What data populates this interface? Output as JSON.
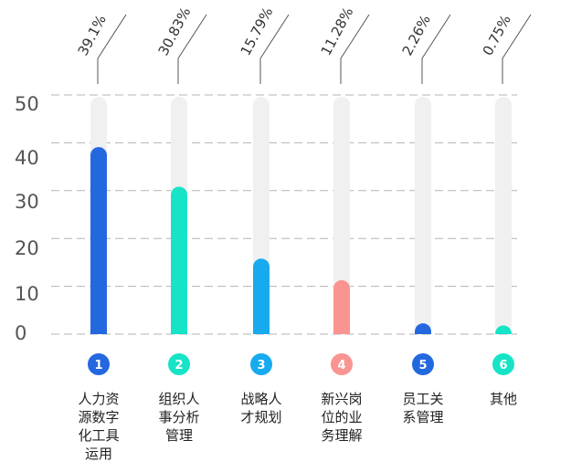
{
  "chart_data": {
    "type": "bar",
    "categories": [
      "人力资源数字化工具运用",
      "组织人事分析管理",
      "战略人才规划",
      "新兴岗位的业务理解",
      "员工关系管理",
      "其他"
    ],
    "category_lines": [
      [
        "人力资",
        "源数字",
        "化工具",
        "运用"
      ],
      [
        "组织人",
        "事分析",
        "管理"
      ],
      [
        "战略人",
        "才规划"
      ],
      [
        "新兴岗",
        "位的业",
        "务理解"
      ],
      [
        "员工关",
        "系管理"
      ],
      [
        "其他"
      ]
    ],
    "badges": [
      "1",
      "2",
      "3",
      "4",
      "5",
      "6"
    ],
    "values": [
      39.1,
      30.83,
      15.79,
      11.28,
      2.26,
      0.75
    ],
    "value_labels": [
      "39.1%",
      "30.83%",
      "15.79%",
      "11.28%",
      "2.26%",
      "0.75%"
    ],
    "y_ticks": [
      0,
      10,
      20,
      30,
      40,
      50
    ],
    "ylim": [
      0,
      50
    ],
    "grid": true,
    "colors": [
      "#2468e0",
      "#17e3c6",
      "#17aaef",
      "#f99490",
      "#2468e0",
      "#17e3c6"
    ],
    "track_color": "#f0f0f0",
    "grid_color": "#b3b3b3"
  }
}
